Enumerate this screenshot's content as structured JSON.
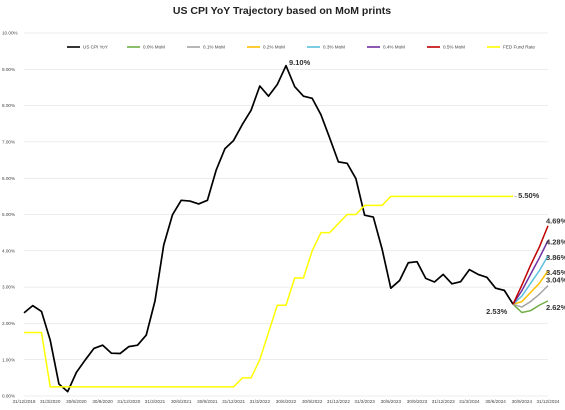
{
  "chart_data": {
    "type": "line",
    "title": "US CPI YoY Trajectory based on MoM prints",
    "xlabel": "",
    "ylabel": "",
    "ylim": [
      0,
      10
    ],
    "yticks": [
      "0.00%",
      "1.00%",
      "2.00%",
      "3.00%",
      "4.00%",
      "5.00%",
      "6.00%",
      "7.00%",
      "8.00%",
      "9.00%",
      "10.00%"
    ],
    "xticks": [
      "31/12/2019",
      "31/3/2020",
      "30/6/2020",
      "30/9/2020",
      "31/12/2020",
      "31/3/2021",
      "30/6/2021",
      "30/9/2021",
      "31/12/2021",
      "31/3/2022",
      "30/6/2022",
      "30/9/2022",
      "31/12/2022",
      "31/3/2023",
      "30/6/2023",
      "30/9/2023",
      "31/12/2023",
      "31/3/2024",
      "30/6/2024",
      "30/9/2024",
      "31/12/2024"
    ],
    "grid": true,
    "legend_position": "top",
    "series": [
      {
        "name": "US CPI YoY",
        "color": "#000000",
        "x": [
          0,
          1,
          2,
          3,
          4,
          5,
          6,
          7,
          8,
          9,
          10,
          11,
          12,
          13,
          14,
          15,
          16,
          17,
          18,
          19,
          20,
          21,
          22,
          23,
          24,
          25,
          26,
          27,
          28,
          29,
          30,
          31,
          32,
          33,
          34,
          35,
          36,
          37,
          38,
          39,
          40,
          41,
          42,
          43,
          44,
          45,
          46,
          47,
          48,
          49,
          50,
          51,
          52,
          53,
          54,
          55,
          56,
          57,
          58,
          59,
          60,
          61,
          62,
          63,
          64,
          65,
          66,
          67,
          68,
          69,
          70,
          71,
          72,
          73,
          74,
          75,
          76,
          77,
          78,
          79,
          80,
          81,
          82,
          83,
          84,
          85,
          86,
          87,
          88,
          89,
          90,
          91,
          92,
          93,
          94,
          95,
          96,
          97,
          98,
          99
        ],
        "values": [
          2.29,
          2.49,
          2.33,
          1.54,
          0.33,
          0.12,
          0.65,
          0.99,
          1.31,
          1.4,
          1.18,
          1.17,
          1.36,
          1.4,
          1.68,
          2.62,
          4.16,
          4.99,
          5.39,
          5.37,
          5.29,
          5.39,
          6.22,
          6.81,
          7.04,
          7.48,
          7.87,
          8.54,
          8.26,
          8.58,
          9.1,
          8.52,
          8.26,
          8.2,
          7.75,
          7.11,
          6.45,
          6.41,
          5.99,
          4.98,
          4.93,
          4.05,
          2.97,
          3.18,
          3.67,
          3.7,
          3.24,
          3.14,
          3.35,
          3.09,
          3.15,
          3.48,
          3.35,
          3.27,
          2.97,
          2.91,
          2.53,
          null,
          null,
          null,
          null,
          null,
          null,
          null,
          null,
          null,
          null,
          null,
          null,
          null,
          null,
          null,
          null,
          null,
          null,
          null,
          null,
          null,
          null,
          null,
          null,
          null,
          null,
          null,
          null,
          null,
          null,
          null,
          null,
          null,
          null,
          null,
          null,
          null,
          null,
          null,
          null,
          null,
          null,
          null
        ]
      },
      {
        "name": "FED Fund Rate",
        "color": "#ffff00",
        "x": [
          0,
          1,
          2,
          3,
          4,
          5,
          6,
          7,
          8,
          9,
          10,
          11,
          12,
          13,
          14,
          15,
          16,
          17,
          18,
          19,
          20,
          21,
          22,
          23,
          24,
          25,
          26,
          27,
          28,
          29,
          30,
          31,
          32,
          33,
          34,
          35,
          36,
          37,
          38,
          39,
          40,
          41,
          42,
          43,
          44,
          45,
          46,
          47,
          48,
          49,
          50,
          51,
          52,
          53,
          54,
          55,
          56
        ],
        "values": [
          1.75,
          1.75,
          1.75,
          0.25,
          0.25,
          0.25,
          0.25,
          0.25,
          0.25,
          0.25,
          0.25,
          0.25,
          0.25,
          0.25,
          0.25,
          0.25,
          0.25,
          0.25,
          0.25,
          0.25,
          0.25,
          0.25,
          0.25,
          0.25,
          0.25,
          0.5,
          0.5,
          1.0,
          1.75,
          2.5,
          2.5,
          3.25,
          3.25,
          4.0,
          4.5,
          4.5,
          4.75,
          5.0,
          5.0,
          5.25,
          5.25,
          5.25,
          5.5,
          5.5,
          5.5,
          5.5,
          5.5,
          5.5,
          5.5,
          5.5,
          5.5,
          5.5,
          5.5,
          5.5,
          5.5,
          5.5,
          5.5
        ]
      },
      {
        "name": "0.0% MoM",
        "color": "#70ad47",
        "x": [
          56,
          57,
          58,
          59,
          60
        ],
        "values": [
          2.53,
          2.3,
          2.35,
          2.5,
          2.62
        ]
      },
      {
        "name": "0.1% MoM",
        "color": "#a5a5a5",
        "x": [
          56,
          57,
          58,
          59,
          60
        ],
        "values": [
          2.53,
          2.45,
          2.6,
          2.8,
          3.04
        ]
      },
      {
        "name": "0.2% MoM",
        "color": "#ffc000",
        "x": [
          56,
          57,
          58,
          59,
          60
        ],
        "values": [
          2.53,
          2.6,
          2.85,
          3.1,
          3.45
        ]
      },
      {
        "name": "0.3% MoM",
        "color": "#5bc0de",
        "x": [
          56,
          57,
          58,
          59,
          60
        ],
        "values": [
          2.53,
          2.75,
          3.1,
          3.45,
          3.86
        ]
      },
      {
        "name": "0.4% MoM",
        "color": "#7030a0",
        "x": [
          56,
          57,
          58,
          59,
          60
        ],
        "values": [
          2.53,
          2.9,
          3.35,
          3.8,
          4.28
        ]
      },
      {
        "name": "0.5% MoM",
        "color": "#c00000",
        "x": [
          56,
          57,
          58,
          59,
          60
        ],
        "values": [
          2.53,
          3.05,
          3.6,
          4.1,
          4.69
        ]
      }
    ],
    "annotations": [
      {
        "text": "9.10%",
        "x": 30,
        "y": 9.1,
        "bold": true
      },
      {
        "text": "5.50%",
        "x": 56,
        "y": 5.5,
        "bold": true
      },
      {
        "text": "4.69%",
        "x": 60,
        "y": 4.69,
        "bold": true
      },
      {
        "text": "4.28%",
        "x": 60,
        "y": 4.28,
        "bold": true
      },
      {
        "text": "3.86%",
        "x": 60,
        "y": 3.86,
        "bold": true
      },
      {
        "text": "3.45%",
        "x": 60,
        "y": 3.45,
        "bold": true
      },
      {
        "text": "3.04%",
        "x": 60,
        "y": 3.04,
        "bold": true
      },
      {
        "text": "2.62%",
        "x": 60,
        "y": 2.62,
        "bold": true
      },
      {
        "text": "2.53%",
        "x": 56,
        "y": 2.53,
        "bold": true
      }
    ]
  }
}
